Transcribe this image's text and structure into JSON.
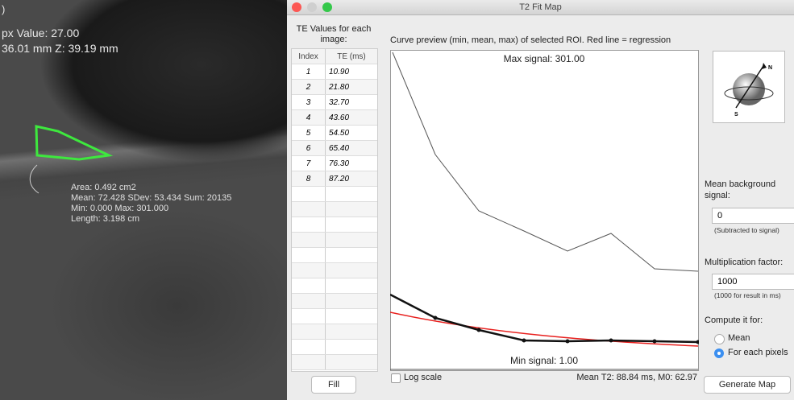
{
  "image_overlay": {
    "corner_text": ")",
    "pixel_value": "px Value: 27.00",
    "position": "36.01 mm Z: 39.19 mm",
    "roi_stats": [
      "Area: 0.492 cm2",
      "Mean: 72.428 SDev: 53.434 Sum: 20135",
      "Min: 0.000 Max: 301.000",
      "Length: 3.198 cm"
    ]
  },
  "window": {
    "title": "T2 Fit Map",
    "te_table": {
      "heading": "TE Values for each image:",
      "columns": [
        "Index",
        "TE (ms)"
      ],
      "rows": [
        [
          "1",
          "10.90"
        ],
        [
          "2",
          "21.80"
        ],
        [
          "3",
          "32.70"
        ],
        [
          "4",
          "43.60"
        ],
        [
          "5",
          "54.50"
        ],
        [
          "6",
          "65.40"
        ],
        [
          "7",
          "76.30"
        ],
        [
          "8",
          "87.20"
        ]
      ]
    },
    "fill_button": "Fill",
    "preview": {
      "caption": "Curve preview (min, mean, max) of selected ROI. Red line = regression",
      "max_label": "Max signal: 301.00",
      "min_label": "Min signal: 1.00",
      "log_scale": "Log scale",
      "result": "Mean T2: 88.84 ms, M0: 62.97"
    },
    "controls": {
      "background_label": "Mean background signal:",
      "background_value": "0",
      "background_hint": "(Subtracted to signal)",
      "factor_label": "Multiplication factor:",
      "factor_value": "1000",
      "factor_hint": "(1000 for result in ms)",
      "compute_label": "Compute it for:",
      "options": [
        "Mean",
        "For each pixels"
      ],
      "generate_button": "Generate Map"
    }
  }
}
